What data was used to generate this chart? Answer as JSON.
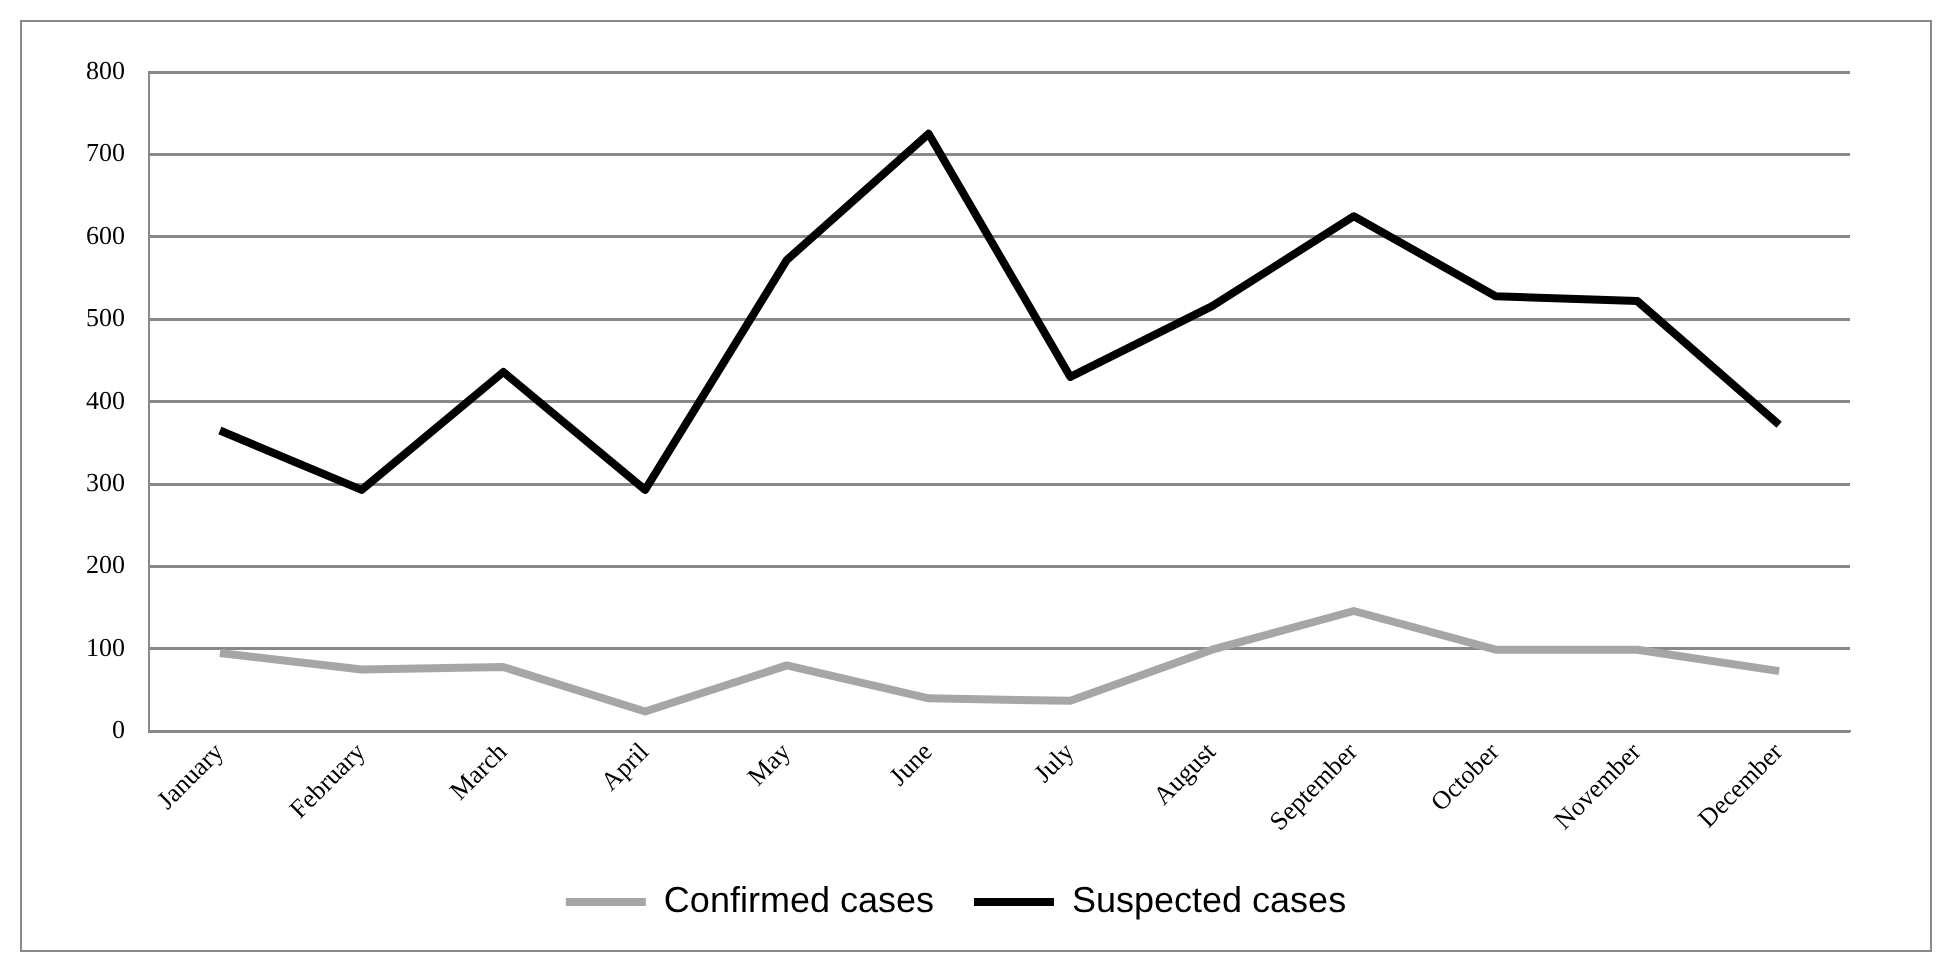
{
  "chart_data": {
    "type": "line",
    "categories": [
      "January",
      "February",
      "March",
      "April",
      "May",
      "June",
      "July",
      "August",
      "September",
      "October",
      "November",
      "December"
    ],
    "series": [
      {
        "name": "Confirmed cases",
        "color": "#a6a6a6",
        "values": [
          95,
          75,
          78,
          24,
          80,
          40,
          37,
          99,
          146,
          99,
          99,
          73
        ]
      },
      {
        "name": "Suspected cases",
        "color": "#000000",
        "values": [
          365,
          293,
          436,
          293,
          572,
          725,
          430,
          516,
          625,
          528,
          522,
          372
        ]
      }
    ],
    "ylim": [
      0,
      800
    ],
    "yticks": [
      0,
      100,
      200,
      300,
      400,
      500,
      600,
      700,
      800
    ],
    "grid": "y",
    "legend": "bottom",
    "marker": "none",
    "line_style": "solid"
  }
}
